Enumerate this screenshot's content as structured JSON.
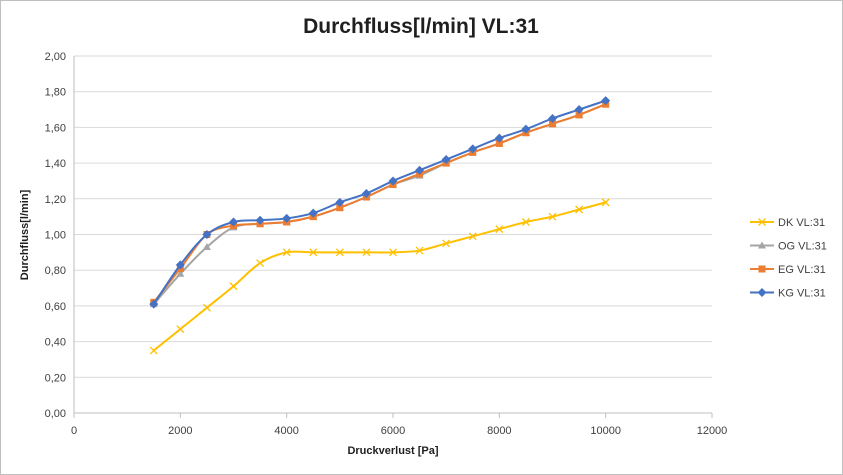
{
  "chart_data": {
    "type": "line",
    "title": "Durchfluss[l/min] VL:31",
    "xlabel": "Druckverlust [Pa]",
    "ylabel": "Durchfluss[l/min]",
    "xlim": [
      0,
      12000
    ],
    "ylim": [
      0,
      2.0
    ],
    "x_ticks": [
      0,
      2000,
      4000,
      6000,
      8000,
      10000,
      12000
    ],
    "x_tick_labels": [
      "0",
      "2000",
      "4000",
      "6000",
      "8000",
      "10000",
      "12000"
    ],
    "y_ticks": [
      0,
      0.2,
      0.4,
      0.6,
      0.8,
      1.0,
      1.2,
      1.4,
      1.6,
      1.8,
      2.0
    ],
    "y_tick_labels": [
      "0,00",
      "0,20",
      "0,40",
      "0,60",
      "0,80",
      "1,00",
      "1,20",
      "1,40",
      "1,60",
      "1,80",
      "2,00"
    ],
    "grid": "horizontal",
    "legend_position": "right",
    "x": [
      1500,
      2000,
      2500,
      3000,
      3500,
      4000,
      4500,
      5000,
      5500,
      6000,
      6500,
      7000,
      7500,
      8000,
      8500,
      9000,
      9500,
      10000
    ],
    "series": [
      {
        "name": "DK VL:31",
        "color": "#ffc000",
        "marker": "x",
        "values": [
          0.35,
          0.47,
          0.59,
          0.71,
          0.84,
          0.9,
          0.9,
          0.9,
          0.9,
          0.9,
          0.91,
          0.95,
          0.99,
          1.03,
          1.07,
          1.1,
          1.14,
          1.18
        ]
      },
      {
        "name": "OG VL:31",
        "color": "#a5a5a5",
        "marker": "triangle",
        "values": [
          0.61,
          0.78,
          0.93,
          1.04,
          1.06,
          1.07,
          1.1,
          1.15,
          1.21,
          1.28,
          1.33,
          1.4,
          1.46,
          1.51,
          1.57,
          1.62,
          1.67,
          1.73
        ]
      },
      {
        "name": "EG VL:31",
        "color": "#ed7d31",
        "marker": "square",
        "values": [
          0.62,
          0.81,
          1.0,
          1.05,
          1.06,
          1.07,
          1.1,
          1.15,
          1.21,
          1.28,
          1.34,
          1.4,
          1.46,
          1.51,
          1.57,
          1.62,
          1.67,
          1.73
        ]
      },
      {
        "name": "KG VL:31",
        "color": "#4472c4",
        "marker": "diamond",
        "values": [
          0.61,
          0.83,
          1.0,
          1.07,
          1.08,
          1.09,
          1.12,
          1.18,
          1.23,
          1.3,
          1.36,
          1.42,
          1.48,
          1.54,
          1.59,
          1.65,
          1.7,
          1.75
        ]
      }
    ]
  }
}
